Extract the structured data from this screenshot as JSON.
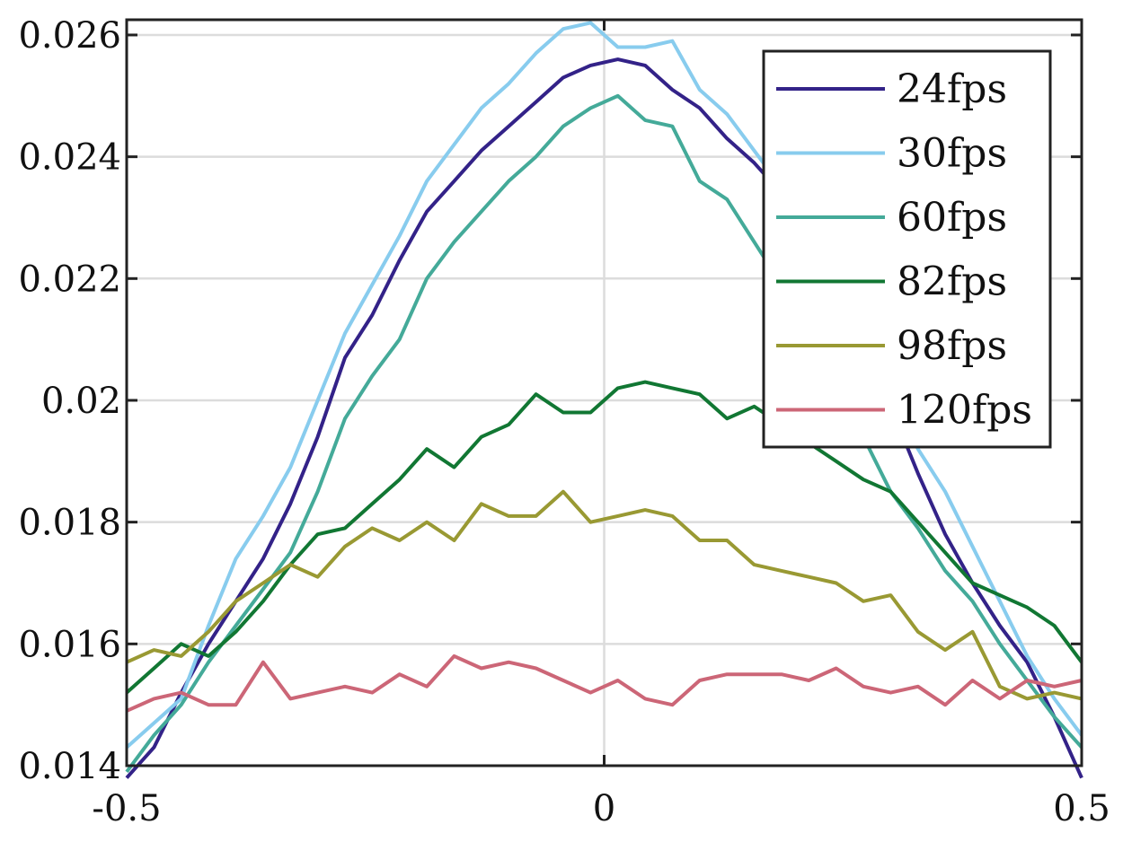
{
  "chart_data": {
    "type": "line",
    "title": "",
    "xlabel": "",
    "ylabel": "",
    "xlim": [
      -0.5,
      0.5
    ],
    "ylim": [
      0.014,
      0.02625
    ],
    "grid": true,
    "legend_position": "top-right",
    "xticks": [
      -0.5,
      0,
      0.5
    ],
    "xtick_labels": [
      "-0.5",
      "0",
      "0.5"
    ],
    "yticks": [
      0.014,
      0.016,
      0.018,
      0.02,
      0.022,
      0.024,
      0.026
    ],
    "ytick_labels": [
      "0.014",
      "0.016",
      "0.018",
      "0.02",
      "0.022",
      "0.024",
      "0.026"
    ],
    "x": [
      -0.5,
      -0.4714,
      -0.4429,
      -0.4143,
      -0.3857,
      -0.3571,
      -0.3286,
      -0.3,
      -0.2714,
      -0.2429,
      -0.2143,
      -0.1857,
      -0.1571,
      -0.1286,
      -0.1,
      -0.0714,
      -0.0429,
      -0.0143,
      0.0143,
      0.0429,
      0.0714,
      0.1,
      0.1286,
      0.1571,
      0.1857,
      0.2143,
      0.2429,
      0.2714,
      0.3,
      0.3286,
      0.3571,
      0.3857,
      0.4143,
      0.4429,
      0.4714,
      0.5
    ],
    "series": [
      {
        "name": "24fps",
        "color": "#332288",
        "values": [
          0.0138,
          0.0143,
          0.0152,
          0.016,
          0.0167,
          0.0174,
          0.0183,
          0.0194,
          0.0207,
          0.0214,
          0.0223,
          0.0231,
          0.0236,
          0.0241,
          0.0245,
          0.0249,
          0.0253,
          0.0255,
          0.0256,
          0.0255,
          0.0251,
          0.0248,
          0.0243,
          0.0239,
          0.0234,
          0.0227,
          0.0219,
          0.0209,
          0.0199,
          0.0188,
          0.0178,
          0.017,
          0.0163,
          0.0157,
          0.0148,
          0.0138
        ]
      },
      {
        "name": "30fps",
        "color": "#88CCEE",
        "values": [
          0.0143,
          0.0147,
          0.0151,
          0.0163,
          0.0174,
          0.0181,
          0.0189,
          0.02,
          0.0211,
          0.0219,
          0.0227,
          0.0236,
          0.0242,
          0.0248,
          0.0252,
          0.0257,
          0.0261,
          0.0262,
          0.0258,
          0.0258,
          0.0259,
          0.0251,
          0.0247,
          0.0241,
          0.0235,
          0.0228,
          0.022,
          0.021,
          0.02,
          0.0192,
          0.0185,
          0.0176,
          0.0167,
          0.0158,
          0.0151,
          0.0145
        ]
      },
      {
        "name": "60fps",
        "color": "#44AA99",
        "values": [
          0.0139,
          0.0145,
          0.015,
          0.0157,
          0.0163,
          0.0169,
          0.0175,
          0.0185,
          0.0197,
          0.0204,
          0.021,
          0.022,
          0.0226,
          0.0231,
          0.0236,
          0.024,
          0.0245,
          0.0248,
          0.025,
          0.0246,
          0.0245,
          0.0236,
          0.0233,
          0.0226,
          0.0219,
          0.0211,
          0.0203,
          0.0194,
          0.0185,
          0.0179,
          0.0172,
          0.0167,
          0.016,
          0.0154,
          0.0148,
          0.0143
        ]
      },
      {
        "name": "82fps",
        "color": "#117733",
        "values": [
          0.0152,
          0.0156,
          0.016,
          0.0158,
          0.0162,
          0.0167,
          0.0173,
          0.0178,
          0.0179,
          0.0183,
          0.0187,
          0.0192,
          0.0189,
          0.0194,
          0.0196,
          0.0201,
          0.0198,
          0.0198,
          0.0202,
          0.0203,
          0.0202,
          0.0201,
          0.0197,
          0.0199,
          0.0196,
          0.0193,
          0.019,
          0.0187,
          0.0185,
          0.018,
          0.0175,
          0.017,
          0.0168,
          0.0166,
          0.0163,
          0.0157
        ]
      },
      {
        "name": "98fps",
        "color": "#999933",
        "values": [
          0.0157,
          0.0159,
          0.0158,
          0.0162,
          0.0167,
          0.017,
          0.0173,
          0.0171,
          0.0176,
          0.0179,
          0.0177,
          0.018,
          0.0177,
          0.0183,
          0.0181,
          0.0181,
          0.0185,
          0.018,
          0.0181,
          0.0182,
          0.0181,
          0.0177,
          0.0177,
          0.0173,
          0.0172,
          0.0171,
          0.017,
          0.0167,
          0.0168,
          0.0162,
          0.0159,
          0.0162,
          0.0153,
          0.0151,
          0.0152,
          0.0151
        ]
      },
      {
        "name": "120fps",
        "color": "#CC6677",
        "values": [
          0.0149,
          0.0151,
          0.0152,
          0.015,
          0.015,
          0.0157,
          0.0151,
          0.0152,
          0.0153,
          0.0152,
          0.0155,
          0.0153,
          0.0158,
          0.0156,
          0.0157,
          0.0156,
          0.0154,
          0.0152,
          0.0154,
          0.0151,
          0.015,
          0.0154,
          0.0155,
          0.0155,
          0.0155,
          0.0154,
          0.0156,
          0.0153,
          0.0152,
          0.0153,
          0.015,
          0.0154,
          0.0151,
          0.0154,
          0.0153,
          0.0154
        ]
      }
    ]
  }
}
